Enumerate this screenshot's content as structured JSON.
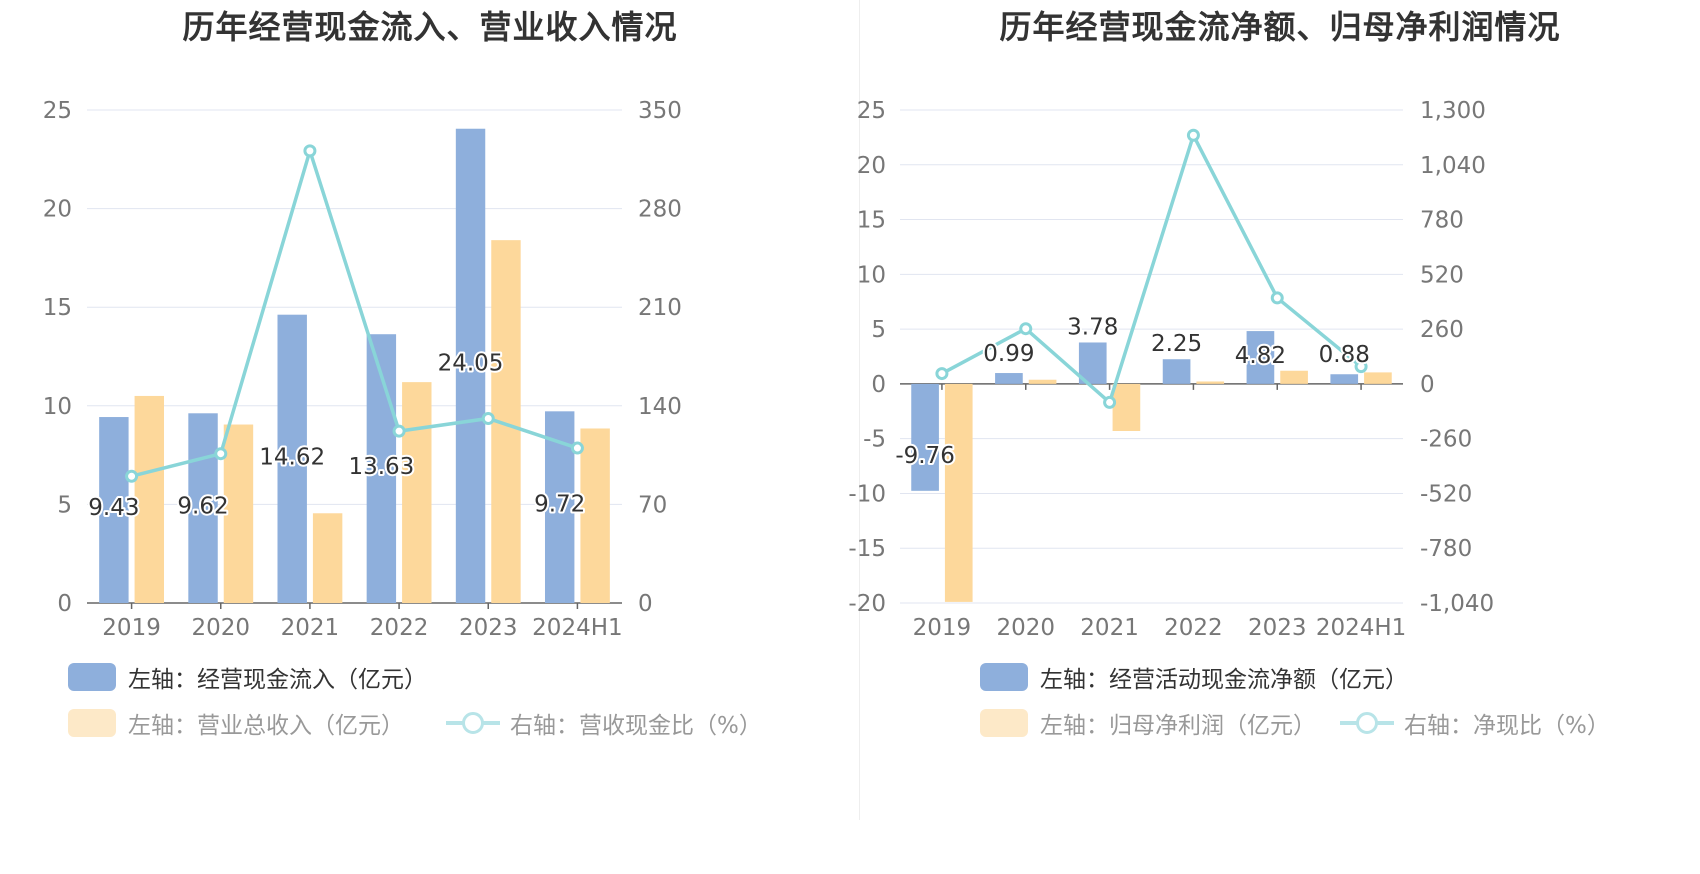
{
  "left_chart": {
    "title": "历年经营现金流入、营业收入情况",
    "legend": [
      {
        "label": "左轴：经营现金流入（亿元）",
        "color": "#8eafdc",
        "type": "bar"
      },
      {
        "label": "左轴：营业总收入（亿元）",
        "color": "#fdd89b",
        "type": "bar"
      },
      {
        "label": "右轴：营收现金比（%）",
        "color": "#89d5d8",
        "type": "line"
      }
    ]
  },
  "right_chart": {
    "title": "历年经营现金流净额、归母净利润情况",
    "legend": [
      {
        "label": "左轴：经营活动现金流净额（亿元）",
        "color": "#8eafdc",
        "type": "bar"
      },
      {
        "label": "左轴：归母净利润（亿元）",
        "color": "#fdd89b",
        "type": "bar"
      },
      {
        "label": "右轴：净现比（%）",
        "color": "#89d5d8",
        "type": "line"
      }
    ]
  },
  "chart_data": [
    {
      "type": "bar",
      "title": "历年经营现金流入、营业收入情况",
      "categories": [
        "2019",
        "2020",
        "2021",
        "2022",
        "2023",
        "2024H1"
      ],
      "left_axis": {
        "min": 0,
        "max": 25,
        "ticks": [
          "0",
          "5",
          "10",
          "15",
          "20",
          "25"
        ]
      },
      "right_axis": {
        "min": 0,
        "max": 350,
        "ticks": [
          "0",
          "70",
          "140",
          "210",
          "280",
          "350"
        ]
      },
      "series": [
        {
          "name": "经营现金流入（亿元）",
          "axis": "left",
          "type": "bar",
          "color": "#8eafdc",
          "values": [
            9.43,
            9.62,
            14.62,
            13.63,
            24.05,
            9.72
          ],
          "labels": [
            "9.43",
            "9.62",
            "14.62",
            "13.63",
            "24.05",
            "9.72"
          ]
        },
        {
          "name": "营业总收入（亿元）",
          "axis": "left",
          "type": "bar",
          "color": "#fdd89b",
          "values": [
            10.5,
            9.05,
            4.55,
            11.2,
            18.4,
            8.85
          ]
        },
        {
          "name": "营收现金比（%）",
          "axis": "right",
          "type": "line",
          "color": "#89d5d8",
          "values": [
            90,
            106,
            321,
            122,
            131,
            110
          ]
        }
      ]
    },
    {
      "type": "bar",
      "title": "历年经营现金流净额、归母净利润情况",
      "categories": [
        "2019",
        "2020",
        "2021",
        "2022",
        "2023",
        "2024H1"
      ],
      "left_axis": {
        "min": -20,
        "max": 25,
        "ticks": [
          "-20",
          "-15",
          "-10",
          "-5",
          "0",
          "5",
          "10",
          "15",
          "20",
          "25"
        ]
      },
      "right_axis": {
        "min": -1040,
        "max": 1300,
        "ticks": [
          "-1,040",
          "-780",
          "-520",
          "-260",
          "0",
          "260",
          "520",
          "780",
          "1,040",
          "1,300"
        ]
      },
      "series": [
        {
          "name": "经营活动现金流净额（亿元）",
          "axis": "left",
          "type": "bar",
          "color": "#8eafdc",
          "values": [
            -9.76,
            0.99,
            3.78,
            2.25,
            4.82,
            0.88
          ],
          "labels": [
            "-9.76",
            "0.99",
            "3.78",
            "2.25",
            "4.82",
            "0.88"
          ]
        },
        {
          "name": "归母净利润（亿元）",
          "axis": "left",
          "type": "bar",
          "color": "#fdd89b",
          "values": [
            -19.9,
            0.38,
            -4.3,
            0.22,
            1.2,
            1.05
          ]
        },
        {
          "name": "净现比（%）",
          "axis": "right",
          "type": "line",
          "color": "#89d5d8",
          "values": [
            49,
            262,
            -88,
            1180,
            408,
            82
          ]
        }
      ]
    }
  ]
}
